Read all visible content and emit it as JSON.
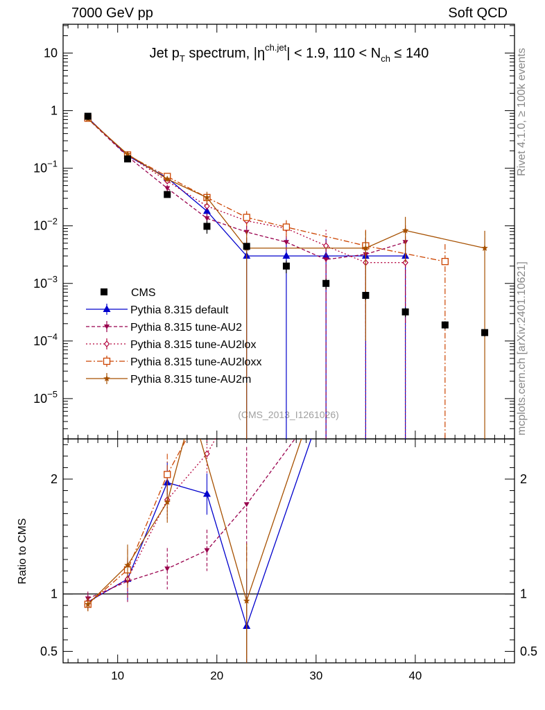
{
  "header": {
    "left": "7000 GeV pp",
    "right": "Soft QCD"
  },
  "side": {
    "rivet": "Rivet 4.1.0, ≥ 100k events",
    "mcplots": "mcplots.cern.ch [arXiv:2401.10621]"
  },
  "chart_data": {
    "type": "scatter",
    "title": "Jet pT spectrum, |ηch.jet| < 1.9, 110 < Nch ≤ 140",
    "title_parts": {
      "pre": "Jet p",
      "sub1": "T",
      "mid": " spectrum, |η",
      "sup": "ch.jet",
      "post": "| < 1.9, 110 < N",
      "sub2": "ch",
      "end": " ≤ 140"
    },
    "watermark": "(CMS_2013_I1261026)",
    "xlim": [
      4.5,
      50
    ],
    "ylim_log10": [
      -5.7,
      1.5
    ],
    "ratio_ylim": [
      0.4,
      2.35
    ],
    "ratio_ylabel": "Ratio to CMS",
    "x_ticks": [
      10,
      20,
      30,
      40
    ],
    "y_ticks": [
      {
        "exp": 1,
        "label": "10"
      },
      {
        "exp": 0,
        "label": "1"
      },
      {
        "exp": -1,
        "label": "10",
        "sup": "−1"
      },
      {
        "exp": -2,
        "label": "10",
        "sup": "−2"
      },
      {
        "exp": -3,
        "label": "10",
        "sup": "−3"
      },
      {
        "exp": -4,
        "label": "10",
        "sup": "−4"
      },
      {
        "exp": -5,
        "label": "10",
        "sup": "−5"
      }
    ],
    "ratio_ticks": [
      {
        "value": 0.5,
        "label": "0.5"
      },
      {
        "value": 1,
        "label": "1"
      },
      {
        "value": 2,
        "label": "2"
      }
    ],
    "series": [
      {
        "name": "CMS",
        "color": "#000000",
        "marker": "square",
        "dash": "",
        "x": [
          7,
          11,
          15,
          19,
          23,
          27,
          31,
          35,
          39,
          43,
          47
        ],
        "y": [
          0.8,
          0.145,
          0.035,
          0.0098,
          0.0044,
          0.002,
          0.001,
          0.00062,
          0.00032,
          0.00019,
          0.00014
        ],
        "err": [
          0.04,
          0.008,
          0.002,
          0.0025,
          0.0004,
          0.0005,
          0.0002,
          0.0001,
          6e-05,
          3e-05,
          2e-05
        ],
        "ratio": []
      },
      {
        "name": "Pythia 8.315 default",
        "color": "#0000cc",
        "marker": "triangle-up",
        "dash": "",
        "x": [
          7,
          11,
          15,
          19,
          23,
          27,
          31,
          35,
          39
        ],
        "y": [
          0.75,
          0.165,
          0.068,
          0.018,
          0.003,
          0.003,
          0.003,
          0.003,
          0.003
        ],
        "err": [
          0.02,
          0.01,
          0.008,
          0.005,
          0.003,
          0.003,
          0.003,
          0.003,
          0.003
        ],
        "ratio": [
          0.93,
          1.13,
          1.97,
          1.87,
          0.72,
          2.6
        ],
        "ratio_x": [
          7,
          11,
          15,
          19,
          23,
          30.5
        ]
      },
      {
        "name": "Pythia 8.315 tune-AU2",
        "color": "#99004d",
        "marker": "triangle-down",
        "dash": "5,3",
        "x": [
          7,
          11,
          15,
          19,
          23,
          27,
          31,
          35,
          39
        ],
        "y": [
          0.72,
          0.16,
          0.045,
          0.0135,
          0.0078,
          0.0052,
          0.0026,
          0.0032,
          0.0052
        ],
        "err": [
          0.02,
          0.01,
          0.006,
          0.003,
          0.002,
          0.0015,
          0.0026,
          0.003,
          0.005
        ],
        "ratio": [
          0.96,
          1.11,
          1.22,
          1.38,
          1.78,
          2.6
        ],
        "ratio_x": [
          7,
          11,
          15,
          19,
          23,
          30
        ]
      },
      {
        "name": "Pythia 8.315 tune-AU2lox",
        "color": "#b3003b",
        "marker": "diamond",
        "dash": "2,3",
        "x": [
          7,
          11,
          15,
          19,
          23,
          27,
          31,
          35,
          39
        ],
        "y": [
          0.74,
          0.17,
          0.06,
          0.022,
          0.0122,
          0.009,
          0.0045,
          0.0023,
          0.0023
        ],
        "err": [
          0.02,
          0.01,
          0.007,
          0.004,
          0.003,
          0.002,
          0.004,
          0.0023,
          0.0023
        ],
        "ratio": [
          0.93,
          1.13,
          1.82,
          2.22,
          2.6
        ],
        "ratio_x": [
          7,
          11,
          15,
          19,
          21.5
        ]
      },
      {
        "name": "Pythia 8.315 tune-AU2loxx",
        "color": "#cc4400",
        "marker": "square-open",
        "dash": "8,3,2,3",
        "x": [
          7,
          11,
          15,
          19,
          23,
          27,
          35,
          43
        ],
        "y": [
          0.74,
          0.17,
          0.072,
          0.031,
          0.014,
          0.0095,
          0.0045,
          0.0024
        ],
        "err": [
          0.02,
          0.01,
          0.008,
          0.005,
          0.004,
          0.003,
          0.004,
          0.0024
        ],
        "ratio": [
          0.91,
          1.21,
          2.04,
          2.6
        ],
        "ratio_x": [
          7,
          11,
          15,
          18.5
        ]
      },
      {
        "name": "Pythia 8.315 tune-AU2m",
        "color": "#a65000",
        "marker": "star",
        "dash": "",
        "x": [
          7,
          11,
          15,
          19,
          23,
          35,
          39,
          47
        ],
        "y": [
          0.72,
          0.175,
          0.065,
          0.031,
          0.0041,
          0.0041,
          0.0083,
          0.0041
        ],
        "err": [
          0.02,
          0.01,
          0.007,
          0.008,
          0.0041,
          0.004,
          0.006,
          0.0041
        ],
        "ratio": [
          0.91,
          1.25,
          1.8,
          2.6,
          0.94,
          2.6
        ],
        "ratio_x": [
          7,
          11,
          15,
          17.5,
          23,
          29.5
        ]
      }
    ]
  }
}
